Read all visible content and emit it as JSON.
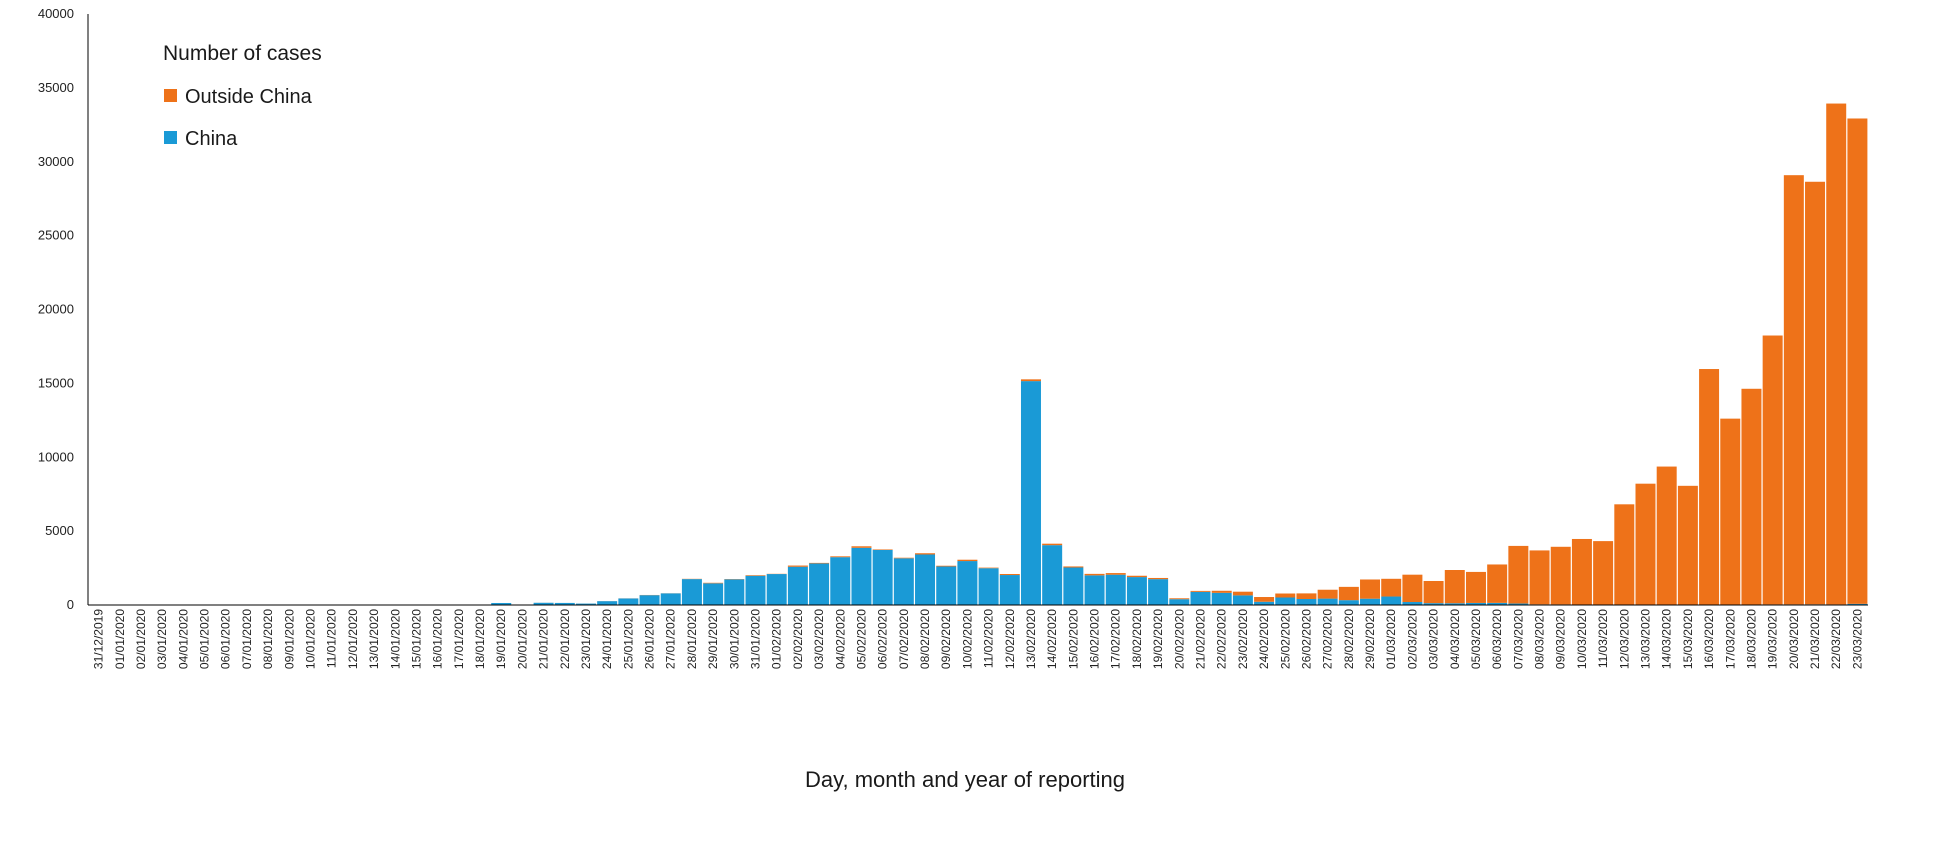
{
  "chart_data": {
    "type": "bar",
    "stacked": true,
    "title": "",
    "xlabel": "Day, month and year of reporting",
    "ylabel": "",
    "ylim": [
      0,
      40000
    ],
    "yticks": [
      0,
      5000,
      10000,
      15000,
      20000,
      25000,
      30000,
      35000,
      40000
    ],
    "grid": false,
    "legend": {
      "title": "Number of cases",
      "placement": "top-left"
    },
    "categories": [
      "31/12/2019",
      "01/01/2020",
      "02/01/2020",
      "03/01/2020",
      "04/01/2020",
      "05/01/2020",
      "06/01/2020",
      "07/01/2020",
      "08/01/2020",
      "09/01/2020",
      "10/01/2020",
      "11/01/2020",
      "12/01/2020",
      "13/01/2020",
      "14/01/2020",
      "15/01/2020",
      "16/01/2020",
      "17/01/2020",
      "18/01/2020",
      "19/01/2020",
      "20/01/2020",
      "21/01/2020",
      "22/01/2020",
      "23/01/2020",
      "24/01/2020",
      "25/01/2020",
      "26/01/2020",
      "27/01/2020",
      "28/01/2020",
      "29/01/2020",
      "30/01/2020",
      "31/01/2020",
      "01/02/2020",
      "02/02/2020",
      "03/02/2020",
      "04/02/2020",
      "05/02/2020",
      "06/02/2020",
      "07/02/2020",
      "08/02/2020",
      "09/02/2020",
      "10/02/2020",
      "11/02/2020",
      "12/02/2020",
      "13/02/2020",
      "14/02/2020",
      "15/02/2020",
      "16/02/2020",
      "17/02/2020",
      "18/02/2020",
      "19/02/2020",
      "20/02/2020",
      "21/02/2020",
      "22/02/2020",
      "23/02/2020",
      "24/02/2020",
      "25/02/2020",
      "26/02/2020",
      "27/02/2020",
      "28/02/2020",
      "29/02/2020",
      "01/03/2020",
      "02/03/2020",
      "03/03/2020",
      "04/03/2020",
      "05/03/2020",
      "06/03/2020",
      "07/03/2020",
      "08/03/2020",
      "09/03/2020",
      "10/03/2020",
      "11/03/2020",
      "12/03/2020",
      "13/03/2020",
      "14/03/2020",
      "15/03/2020",
      "16/03/2020",
      "17/03/2020",
      "18/03/2020",
      "19/03/2020",
      "20/03/2020",
      "21/03/2020",
      "22/03/2020",
      "23/03/2020"
    ],
    "series": [
      {
        "name": "China",
        "color": "#1a9ad6",
        "values": [
          27,
          0,
          0,
          17,
          0,
          15,
          0,
          0,
          0,
          0,
          0,
          0,
          0,
          0,
          0,
          0,
          0,
          4,
          17,
          136,
          19,
          151,
          140,
          97,
          259,
          441,
          665,
          786,
          1753,
          1466,
          1740,
          1980,
          2095,
          2590,
          2812,
          3237,
          3872,
          3727,
          3160,
          3418,
          2607,
          2974,
          2490,
          2028,
          15153,
          4050,
          2538,
          2007,
          2051,
          1890,
          1750,
          394,
          889,
          823,
          650,
          220,
          508,
          406,
          433,
          327,
          427,
          573,
          202,
          125,
          119,
          139,
          143,
          99,
          44,
          40,
          19,
          24,
          15,
          11,
          20,
          16,
          21,
          13,
          34,
          39,
          41,
          46,
          39,
          78
        ]
      },
      {
        "name": "Outside China",
        "color": "#ee7219",
        "values": [
          0,
          0,
          0,
          0,
          0,
          0,
          0,
          0,
          0,
          0,
          0,
          0,
          0,
          0,
          0,
          0,
          0,
          0,
          0,
          0,
          0,
          3,
          1,
          2,
          4,
          6,
          14,
          7,
          18,
          37,
          20,
          40,
          15,
          80,
          38,
          57,
          102,
          35,
          40,
          86,
          50,
          90,
          40,
          70,
          120,
          100,
          72,
          100,
          110,
          90,
          80,
          60,
          65,
          140,
          250,
          320,
          270,
          380,
          600,
          900,
          1300,
          1200,
          1850,
          1500,
          2250,
          2100,
          2600,
          3900,
          3650,
          3900,
          4450,
          4300,
          6800,
          8200,
          9350,
          8050,
          15950,
          12600,
          14600,
          18200,
          29050,
          28600,
          33900,
          32850
        ]
      }
    ]
  }
}
